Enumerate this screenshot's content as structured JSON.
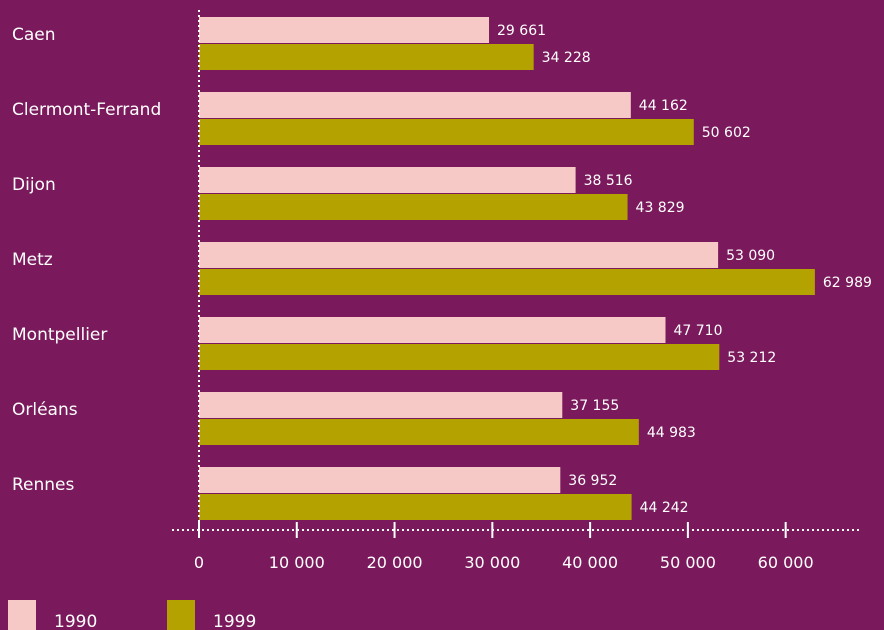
{
  "chart_data": {
    "type": "bar",
    "orientation": "horizontal",
    "categories": [
      "Caen",
      "Clermont-Ferrand",
      "Dijon",
      "Metz",
      "Montpellier",
      "Orléans",
      "Rennes"
    ],
    "series": [
      {
        "name": "1990",
        "color": "#f7c9c6",
        "values": [
          29661,
          44162,
          38516,
          53090,
          47710,
          37155,
          36952
        ],
        "labels": [
          "29 661",
          "44 162",
          "38 516",
          "53 090",
          "47 710",
          "37 155",
          "36 952"
        ]
      },
      {
        "name": "1999",
        "color": "#b3a200",
        "values": [
          34228,
          50602,
          43829,
          62989,
          53212,
          44983,
          44242
        ],
        "labels": [
          "34 228",
          "50 602",
          "43 829",
          "62 989",
          "53 212",
          "44 983",
          "44 242"
        ]
      }
    ],
    "xlim": [
      0,
      63000
    ],
    "xticks": [
      0,
      10000,
      20000,
      30000,
      40000,
      50000,
      60000
    ],
    "xtick_labels": [
      "0",
      "10 000",
      "20 000",
      "30 000",
      "40 000",
      "50 000",
      "60 000"
    ],
    "legend_position": "bottom-left",
    "title": "",
    "xlabel": "",
    "ylabel": ""
  }
}
